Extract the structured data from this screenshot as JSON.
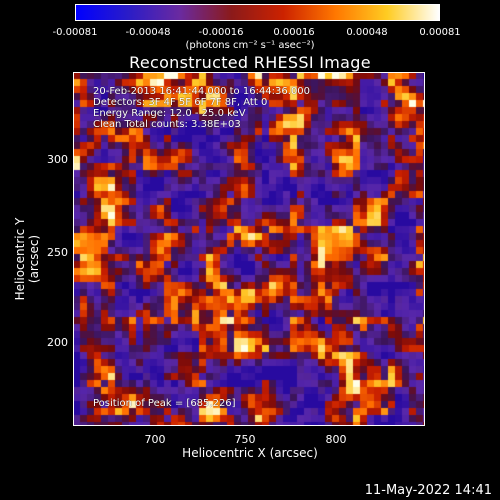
{
  "colorbar": {
    "ticks": [
      "-0.00081",
      "-0.00048",
      "-0.00016",
      "0.00016",
      "0.00048",
      "0.00081"
    ],
    "units_label": "(photons cm⁻² s⁻¹ asec⁻²)",
    "gradient": [
      "#0000ff",
      "#2a1cc8",
      "#6a2aa0",
      "#8b1a1a",
      "#cc2200",
      "#ff7700",
      "#ffcc22",
      "#ffffff"
    ]
  },
  "title": "Reconstructed RHESSI Image",
  "info": {
    "line1": "20-Feb-2013 16:41:44.000 to 16:44:36.000",
    "line2": "Detectors: 3F 4F 5F 6F 7F 8F, Att 0",
    "line3": "Energy Range: 12.0 - 25.0 keV",
    "line4": "Clean     Total counts: 3.38E+03"
  },
  "peak_label": "Position of Peak = [685,226]",
  "axes": {
    "xlabel": "Heliocentric X (arcsec)",
    "ylabel": "Heliocentric Y (arcsec)",
    "xticks": [
      "700",
      "750",
      "800"
    ],
    "yticks": [
      "300",
      "250",
      "200"
    ]
  },
  "footer": "11-May-2022 14:41"
}
